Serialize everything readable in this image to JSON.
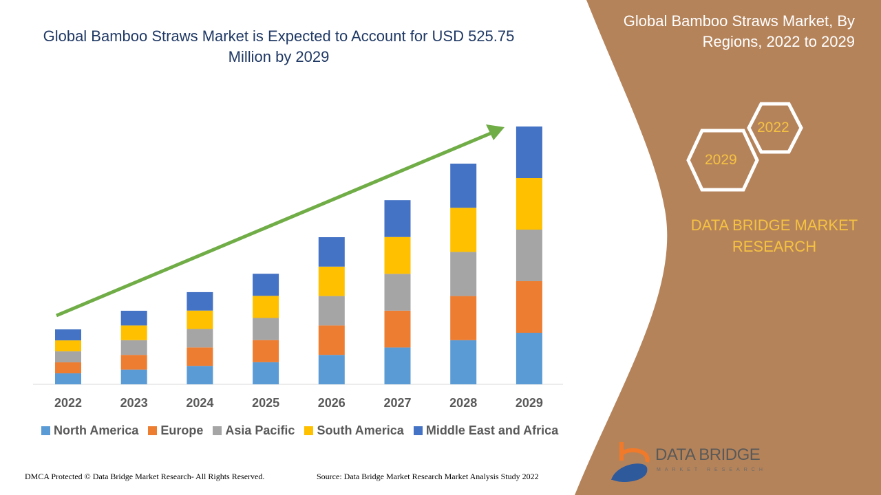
{
  "header": {
    "title": "Global Bamboo Straws Market is Expected to Account for USD 525.75 Million by 2029"
  },
  "side": {
    "title": "Global Bamboo Straws Market, By Regions, 2022 to 2029",
    "hex_top": "2022",
    "hex_bottom": "2029",
    "brand": "DATA BRIDGE MARKET RESEARCH",
    "logo_text": "DATA BRIDGE",
    "logo_sub": "MARKET RESEARCH"
  },
  "footer": {
    "left": "DMCA Protected © Data Bridge Market Research- All Rights Reserved.",
    "right": "Source: Data Bridge Market Research Market Analysis Study 2022"
  },
  "colors": {
    "panel": "#b5835a",
    "accent": "#f5c242",
    "arrow": "#70ad47"
  },
  "chart_data": {
    "type": "bar",
    "stacked": true,
    "title": "",
    "xlabel": "",
    "ylabel": "",
    "grid": false,
    "legend_position": "bottom",
    "categories": [
      "2022",
      "2023",
      "2024",
      "2025",
      "2026",
      "2027",
      "2028",
      "2029"
    ],
    "series": [
      {
        "name": "North America",
        "color": "#5b9bd5",
        "values": [
          22.4,
          30.0,
          37.6,
          45.1,
          60.0,
          75.1,
          90.0,
          105.15
        ]
      },
      {
        "name": "Europe",
        "color": "#ed7d31",
        "values": [
          22.4,
          30.0,
          37.6,
          45.1,
          60.0,
          75.1,
          90.0,
          105.15
        ]
      },
      {
        "name": "Asia Pacific",
        "color": "#a5a5a5",
        "values": [
          22.4,
          30.0,
          37.6,
          45.1,
          60.0,
          75.1,
          90.0,
          105.15
        ]
      },
      {
        "name": "South America",
        "color": "#ffc000",
        "values": [
          22.4,
          30.0,
          37.6,
          45.1,
          60.0,
          75.1,
          90.0,
          105.15
        ]
      },
      {
        "name": "Middle East and Africa",
        "color": "#4472c4",
        "values": [
          22.4,
          30.0,
          37.6,
          45.1,
          60.0,
          75.1,
          90.0,
          105.15
        ]
      }
    ]
  }
}
